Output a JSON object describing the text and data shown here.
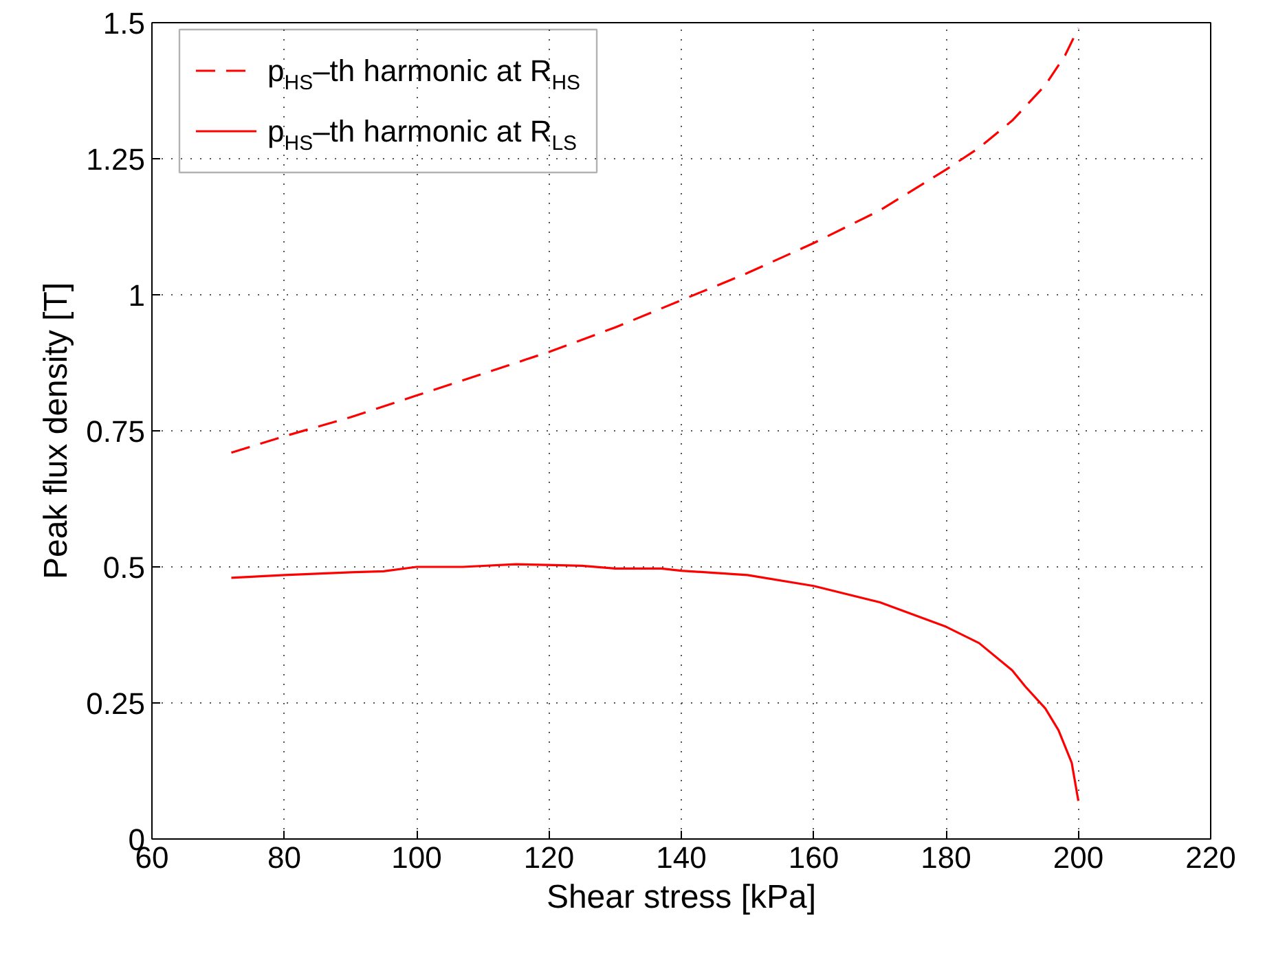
{
  "chart_data": {
    "type": "line",
    "xlabel": "Shear stress [kPa]",
    "ylabel": "Peak flux density [T]",
    "xlim": [
      60,
      220
    ],
    "xticks": [
      60,
      80,
      100,
      120,
      140,
      160,
      180,
      200,
      220
    ],
    "ylim": [
      0,
      1.5
    ],
    "yticks": [
      0,
      0.25,
      0.5,
      0.75,
      1,
      1.25,
      1.5
    ],
    "grid": true,
    "legend": "top left",
    "series": [
      {
        "name": "p$_{HS}$–th harmonic at R$_{HS}$",
        "color": "#ff0000",
        "line_style": "dashed",
        "x": [
          72,
          80,
          90,
          100,
          110,
          120,
          130,
          140,
          150,
          160,
          170,
          180,
          185,
          190,
          195,
          198,
          200
        ],
        "values": [
          0.71,
          0.74,
          0.775,
          0.815,
          0.855,
          0.895,
          0.94,
          0.99,
          1.04,
          1.095,
          1.155,
          1.23,
          1.27,
          1.32,
          1.385,
          1.44,
          1.49
        ]
      },
      {
        "name": "p$_{HS}$–th harmonic at R$_{LS}$",
        "color": "#ff0000",
        "line_style": "solid",
        "x": [
          72,
          80,
          90,
          95,
          100,
          107,
          115,
          125,
          130,
          137,
          140,
          150,
          160,
          170,
          180,
          185,
          190,
          192,
          195,
          197,
          199,
          200
        ],
        "values": [
          0.48,
          0.485,
          0.49,
          0.492,
          0.5,
          0.5,
          0.505,
          0.502,
          0.497,
          0.497,
          0.493,
          0.485,
          0.465,
          0.435,
          0.39,
          0.36,
          0.31,
          0.28,
          0.24,
          0.2,
          0.14,
          0.07
        ]
      }
    ]
  }
}
